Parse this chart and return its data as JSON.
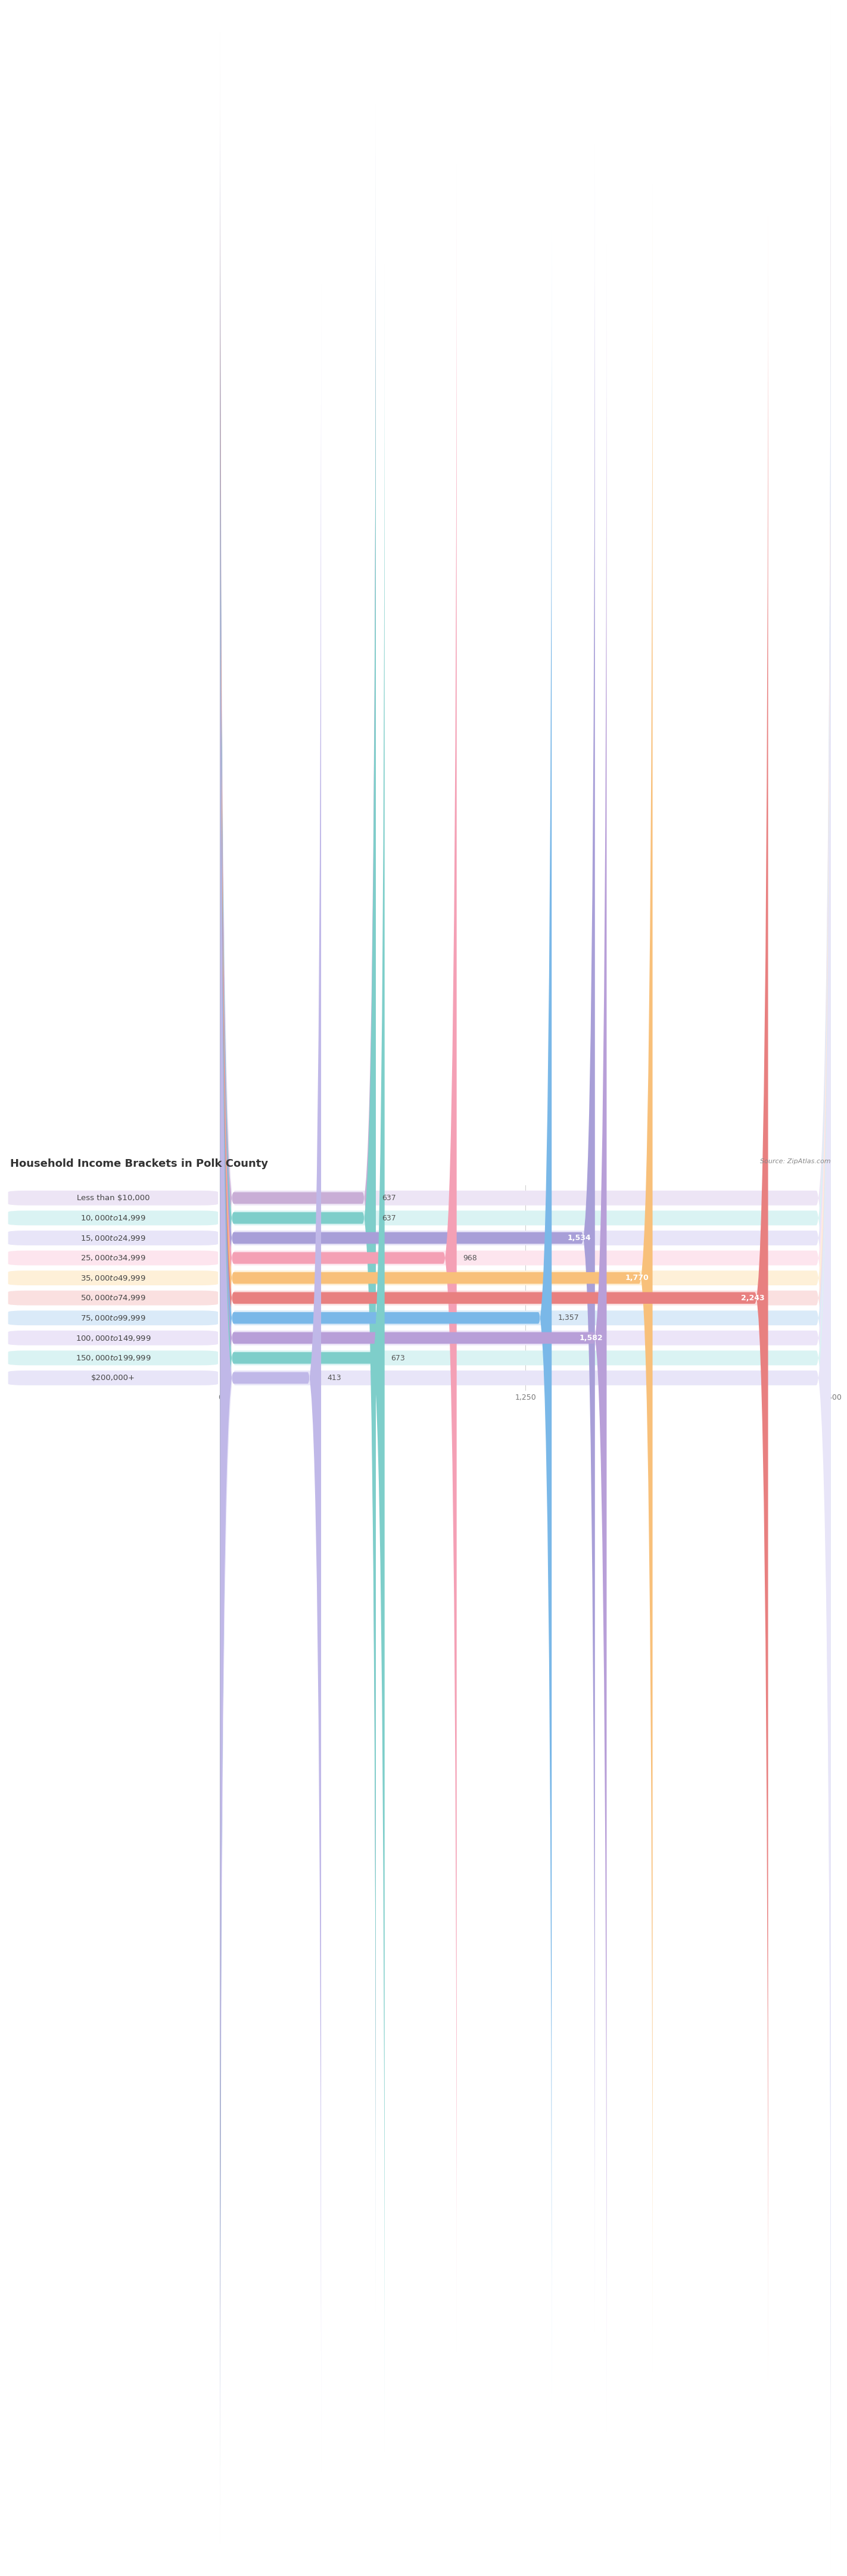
{
  "title": "Household Income Brackets in Polk County",
  "source": "Source: ZipAtlas.com",
  "categories": [
    "Less than $10,000",
    "$10,000 to $14,999",
    "$15,000 to $24,999",
    "$25,000 to $34,999",
    "$35,000 to $49,999",
    "$50,000 to $74,999",
    "$75,000 to $99,999",
    "$100,000 to $149,999",
    "$150,000 to $199,999",
    "$200,000+"
  ],
  "values": [
    637,
    637,
    1534,
    968,
    1770,
    2243,
    1357,
    1582,
    673,
    413
  ],
  "bar_colors": [
    "#c9aed6",
    "#7ececa",
    "#a89fd8",
    "#f4a0b5",
    "#f8c07a",
    "#e88080",
    "#7ab8e8",
    "#b89fd8",
    "#7ececa",
    "#c0b8e8"
  ],
  "bar_bg_colors": [
    "#ede5f5",
    "#daf3f3",
    "#e8e5f8",
    "#fde5ee",
    "#fef0d8",
    "#fae0e0",
    "#daeaf8",
    "#ece5f8",
    "#daf3f3",
    "#e8e5f8"
  ],
  "value_inside": [
    false,
    false,
    true,
    false,
    true,
    true,
    false,
    true,
    false,
    false
  ],
  "xlim": [
    0,
    2500
  ],
  "xticks": [
    0,
    1250,
    2500
  ],
  "background_color": "#ffffff",
  "title_fontsize": 13,
  "label_fontsize": 9.5,
  "value_fontsize": 9
}
